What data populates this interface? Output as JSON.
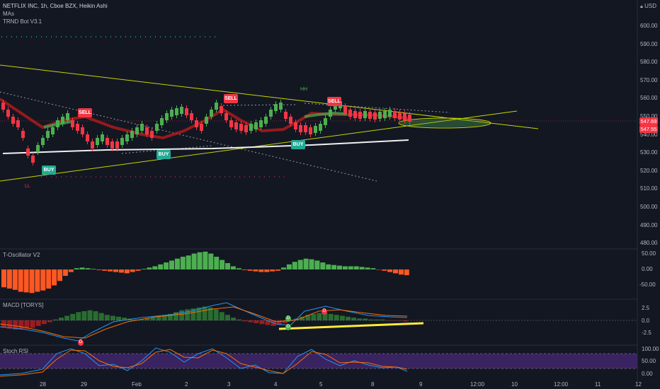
{
  "header": {
    "symbol_title": "NETFLIX INC, 1h, Cboe BZX, Heikin Ashi",
    "indicators": [
      "MAs",
      "TRND Bot V3.1"
    ],
    "currency": "USD",
    "currency_icon": "lock-icon"
  },
  "price_axis": {
    "ticks": [
      "600.00",
      "590.00",
      "580.00",
      "570.00",
      "560.00",
      "550.00",
      "540.00",
      "530.00",
      "520.00",
      "510.00",
      "500.00",
      "490.00",
      "480.00"
    ],
    "tag_last": "547.69",
    "tag_prev": "547.55",
    "tag_last_color": "#f23645",
    "tag_prev_color": "#f23645"
  },
  "signals": {
    "sell": [
      "SELL",
      "SELL",
      "SELL"
    ],
    "buy": [
      "BUY",
      "BUY",
      "BUY"
    ],
    "hh": "HH",
    "ll": "LL"
  },
  "oscillator": {
    "title": "T-Oscillator V2",
    "ticks": [
      "50.00",
      "0.00",
      "-50.00"
    ],
    "pos_color": "#4caf50",
    "neg_color": "#ff5722"
  },
  "macd": {
    "title": "MACD [TORYS]",
    "ticks": [
      "2.5",
      "0.0",
      "-2.5"
    ],
    "markers": [
      "D",
      "D",
      "D",
      "D"
    ]
  },
  "stoch": {
    "title": "Stoch RSI",
    "ticks": [
      "100.00",
      "50.00",
      "0.00"
    ]
  },
  "time_axis": {
    "ticks": [
      "28",
      "29",
      "Feb",
      "2",
      "3",
      "4",
      "5",
      "8",
      "9",
      "12:00",
      "10",
      "12:00",
      "11",
      "12"
    ]
  },
  "colors": {
    "up": "#4caf50",
    "down": "#f23645",
    "trendline": "#c6d600",
    "support": "#ffffff",
    "stoch_band": "#4a2a7a"
  }
}
